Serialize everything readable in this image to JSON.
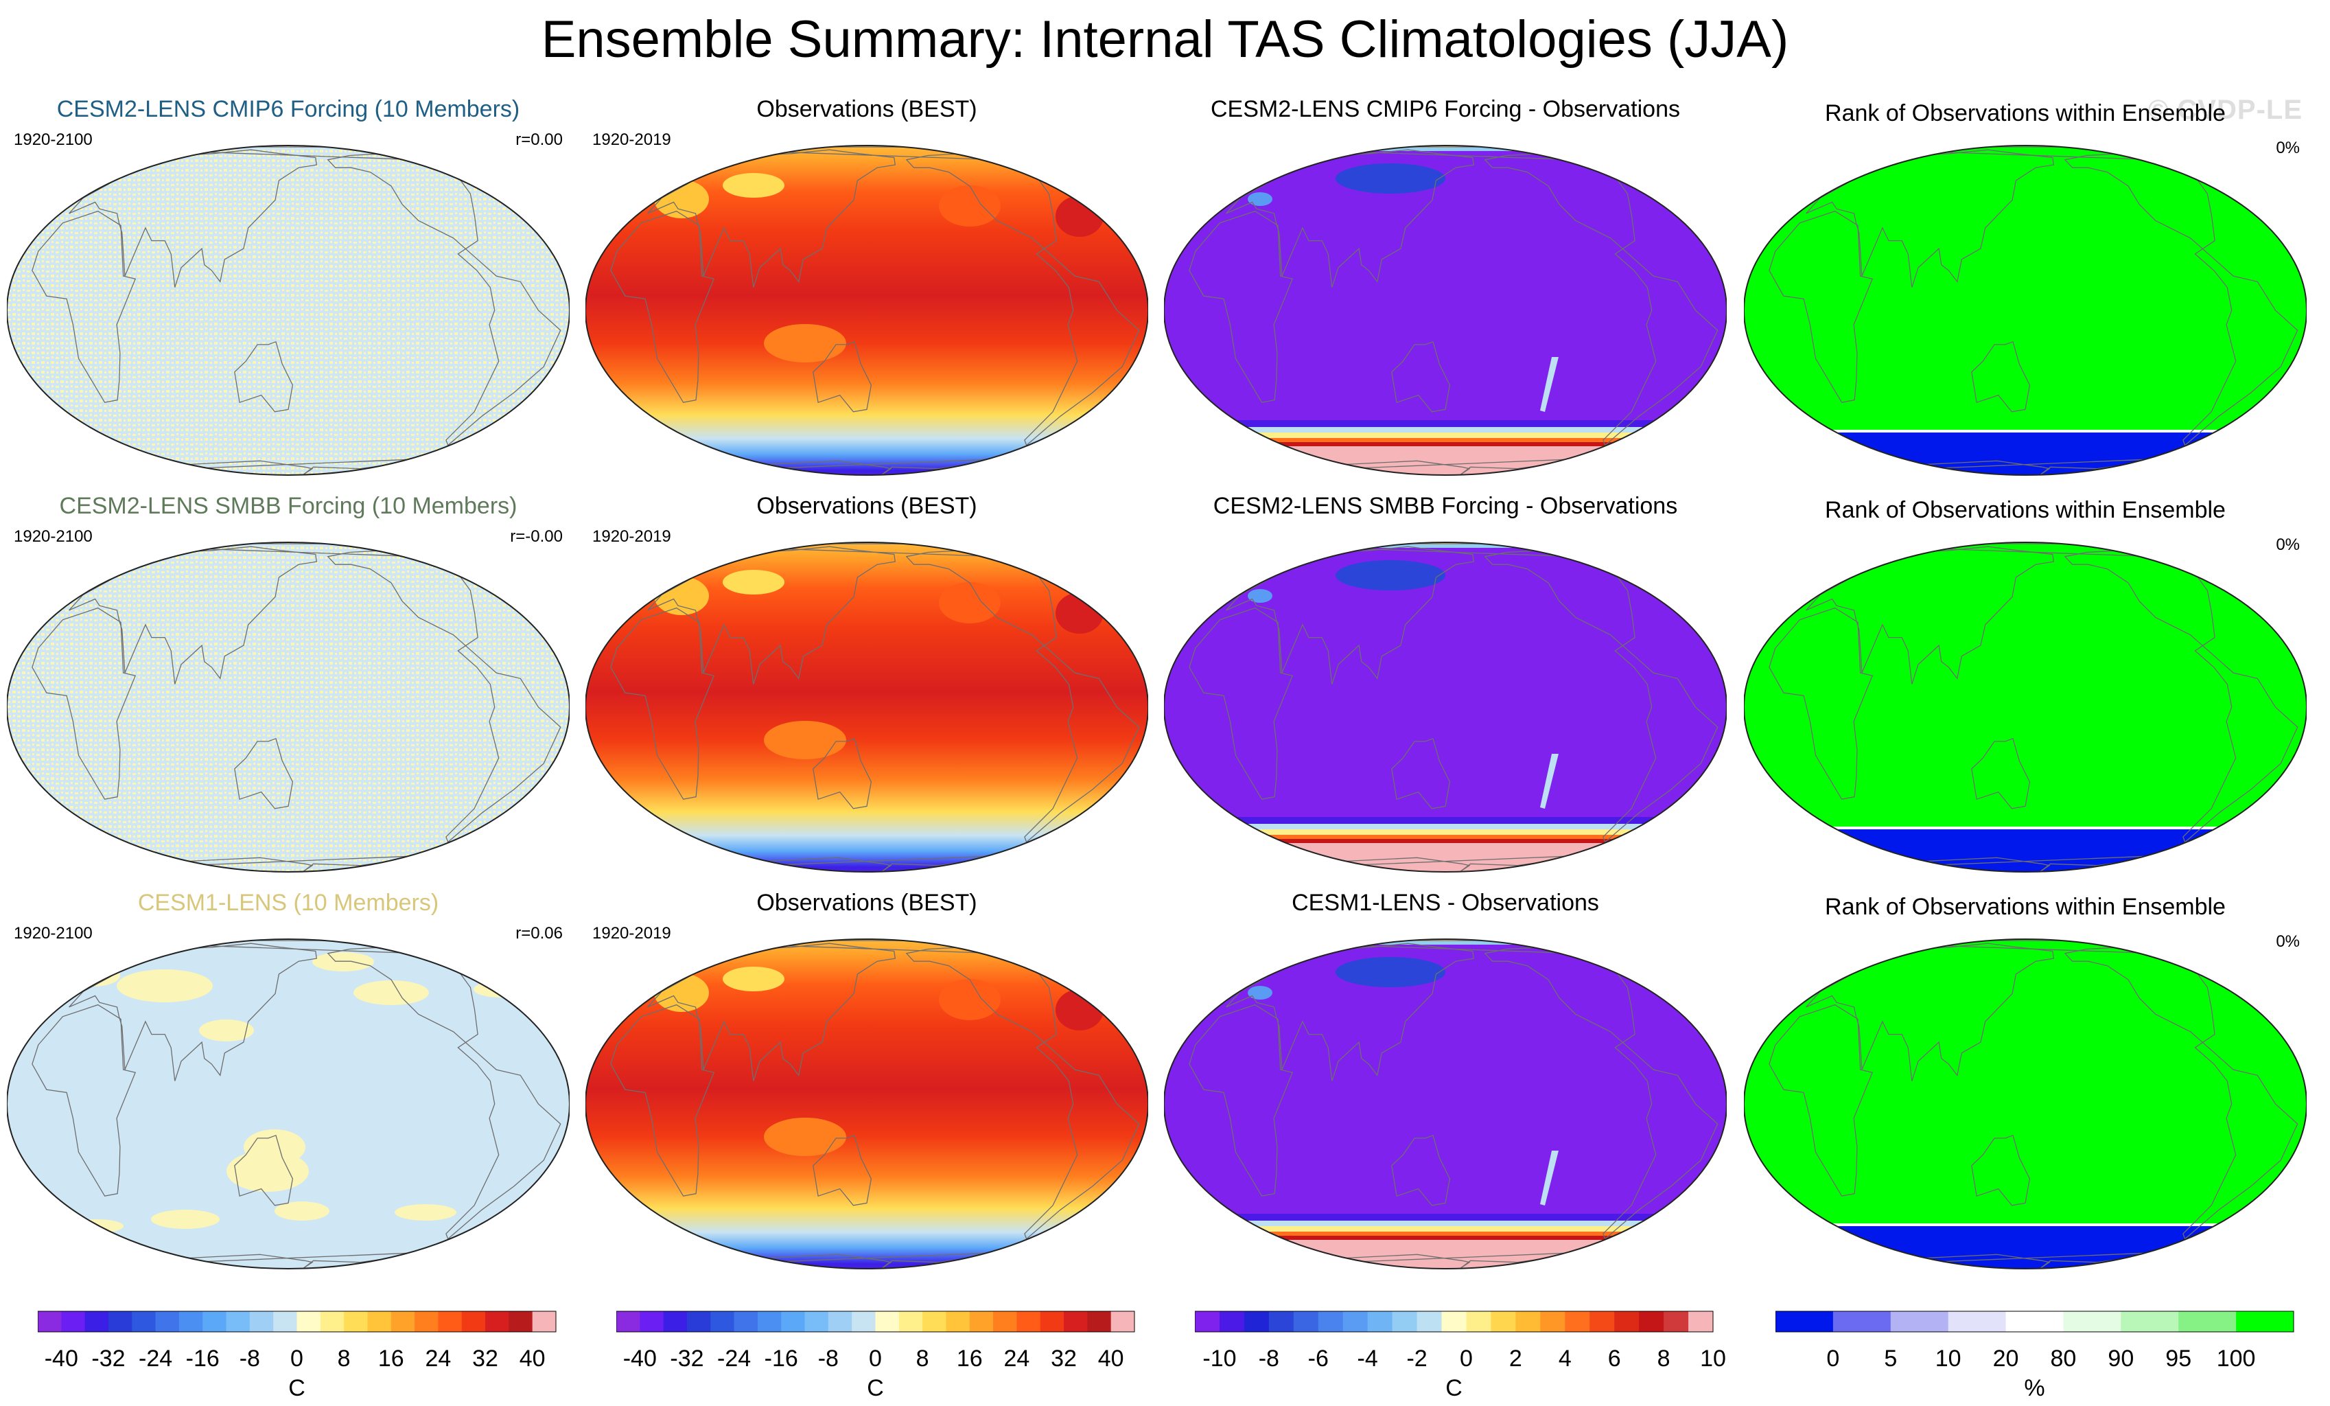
{
  "title": "Ensemble Summary: Internal TAS Climatologies (JJA)",
  "watermark": "© CVDP-LE",
  "colors": {
    "ensemble_blue": "#cfe6f5",
    "ensemble_yellow": "#fbf5b8",
    "rank_green": "#00ff00",
    "rank_blue": "#0018ec",
    "diff_purple": "#8022ee",
    "antarctic_pink": "#f6b6b9",
    "coast": "#6e6e6e",
    "title_cmip6": "#1f5f86",
    "title_smbb": "#5f7a5a",
    "title_cesm1": "#d8c67a"
  },
  "rows": [
    {
      "ensemble": {
        "title": "CESM2-LENS CMIP6 Forcing (10 Members)",
        "years": "1920-2100",
        "r": "r=0.00"
      },
      "observations": {
        "title": "Observations (BEST)",
        "years": "1920-2019"
      },
      "difference": {
        "title": "CESM2-LENS CMIP6 Forcing - Observations"
      },
      "rank": {
        "title": "Rank of Observations within Ensemble",
        "pct": "0%"
      }
    },
    {
      "ensemble": {
        "title": "CESM2-LENS SMBB Forcing (10 Members)",
        "years": "1920-2100",
        "r": "r=-0.00"
      },
      "observations": {
        "title": "Observations (BEST)",
        "years": "1920-2019"
      },
      "difference": {
        "title": "CESM2-LENS SMBB Forcing - Observations"
      },
      "rank": {
        "title": "Rank of Observations within Ensemble",
        "pct": "0%"
      }
    },
    {
      "ensemble": {
        "title": "CESM1-LENS (10 Members)",
        "years": "1920-2100",
        "r": "r=0.06"
      },
      "observations": {
        "title": "Observations (BEST)",
        "years": "1920-2019"
      },
      "difference": {
        "title": "CESM1-LENS - Observations"
      },
      "rank": {
        "title": "Rank of Observations within Ensemble",
        "pct": "0%"
      }
    }
  ],
  "chart_data": [
    {
      "type": "colorbar",
      "name": "climatology",
      "unit": "C",
      "levels": [
        -40,
        -36,
        -32,
        -28,
        -24,
        -20,
        -16,
        -12,
        -8,
        -4,
        0,
        4,
        8,
        12,
        16,
        20,
        24,
        28,
        32,
        36,
        40
      ],
      "tick_labels": [
        "-40",
        "-32",
        "-24",
        "-16",
        "-8",
        "0",
        "8",
        "16",
        "24",
        "32",
        "40"
      ],
      "colors": [
        "#8a2be2",
        "#6b1ff2",
        "#3c1fe6",
        "#2a3cd8",
        "#2f58e0",
        "#3f74ea",
        "#4b8ff2",
        "#5ca8f8",
        "#79bdf8",
        "#9fcff5",
        "#c8e3f2",
        "#fffcc8",
        "#fff08c",
        "#ffdd57",
        "#ffc43a",
        "#ffa22a",
        "#ff7f1f",
        "#ff5c17",
        "#f23a14",
        "#d81f1f",
        "#b81b1b",
        "#f6b6b9"
      ]
    },
    {
      "type": "colorbar",
      "name": "difference",
      "unit": "C",
      "levels": [
        -10,
        -9,
        -8,
        -7,
        -6,
        -5,
        -4,
        -3,
        -2,
        -1,
        0,
        1,
        2,
        3,
        4,
        5,
        6,
        7,
        8,
        9,
        10
      ],
      "tick_labels": [
        "-10",
        "-8",
        "-6",
        "-4",
        "-2",
        "0",
        "2",
        "4",
        "6",
        "8",
        "10"
      ],
      "colors": [
        "#8022ee",
        "#4b1ae6",
        "#1f24d6",
        "#2a45d8",
        "#3a66e4",
        "#4a82ee",
        "#5a9cf4",
        "#6fb5f6",
        "#93cdf4",
        "#bde0f2",
        "#fffcc8",
        "#ffef8a",
        "#ffd64e",
        "#ffbb33",
        "#ff9727",
        "#ff6f1d",
        "#f44a17",
        "#dd2a16",
        "#c41616",
        "#d03a3a",
        "#f6b6b9"
      ]
    },
    {
      "type": "colorbar",
      "name": "rank",
      "unit": "%",
      "levels": [
        0,
        5,
        10,
        20,
        80,
        90,
        95,
        100
      ],
      "tick_labels": [
        "0",
        "5",
        "10",
        "20",
        "80",
        "90",
        "95",
        "100"
      ],
      "colors": [
        "#0018ec",
        "#6b6bf2",
        "#b2b2f5",
        "#e2e2fa",
        "#ffffff",
        "#e4fbe4",
        "#b8f7b8",
        "#86f286",
        "#00ff00"
      ]
    }
  ]
}
